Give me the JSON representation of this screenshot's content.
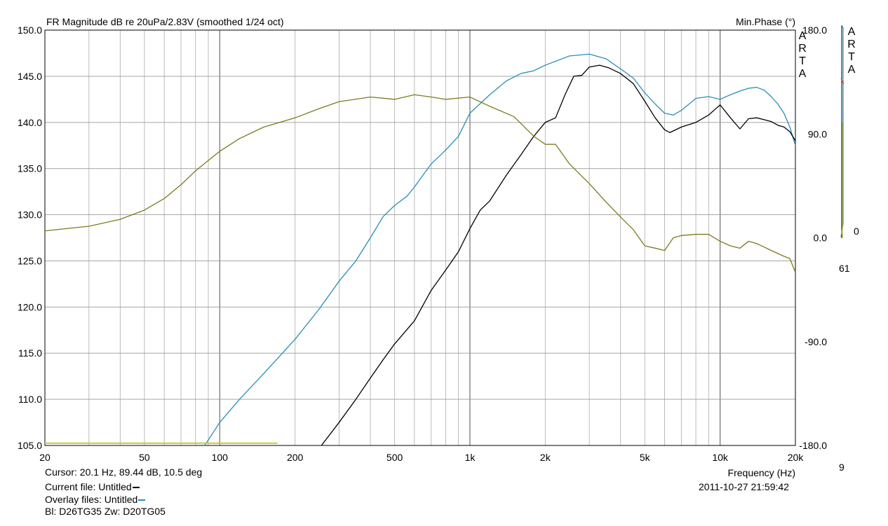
{
  "chart_data": {
    "type": "line",
    "title": "FR Magnitude dB re 20uPa/2.83V (smoothed 1/24 oct)",
    "right_axis_title": "Min.Phase (°)",
    "xlabel": "Frequency (Hz)",
    "x_scale": "log",
    "xlim": [
      20,
      20000
    ],
    "ylim": [
      105,
      150
    ],
    "y2lim": [
      -180,
      180
    ],
    "grid": true,
    "x_ticks": [
      20,
      50,
      100,
      200,
      500,
      1000,
      2000,
      5000,
      10000,
      20000
    ],
    "x_tick_labels": [
      "20",
      "50",
      "100",
      "200",
      "500",
      "1k",
      "2k",
      "5k",
      "10k",
      "20k"
    ],
    "y_ticks": [
      105,
      110,
      115,
      120,
      125,
      130,
      135,
      140,
      145,
      150
    ],
    "y_tick_labels": [
      "105.0",
      "110.0",
      "115.0",
      "120.0",
      "125.0",
      "130.0",
      "135.0",
      "140.0",
      "145.0",
      "150.0"
    ],
    "y2_ticks": [
      -180,
      -90,
      0,
      90,
      180
    ],
    "y2_tick_labels": [
      "-180.0",
      "-90.0",
      "0.0",
      "90.0",
      "180.0"
    ],
    "watermark": "ARTA",
    "series": [
      {
        "color": "#2a8fb5",
        "axis": "left",
        "points": [
          [
            87,
            105
          ],
          [
            90,
            105.6
          ],
          [
            100,
            107.5
          ],
          [
            120,
            110.0
          ],
          [
            150,
            112.8
          ],
          [
            200,
            116.5
          ],
          [
            250,
            119.8
          ],
          [
            300,
            122.8
          ],
          [
            350,
            125.0
          ],
          [
            400,
            127.5
          ],
          [
            450,
            129.8
          ],
          [
            500,
            131.0
          ],
          [
            560,
            132.0
          ],
          [
            600,
            133.0
          ],
          [
            700,
            135.5
          ],
          [
            800,
            137.0
          ],
          [
            900,
            138.5
          ],
          [
            1000,
            141.0
          ],
          [
            1200,
            143.0
          ],
          [
            1400,
            144.5
          ],
          [
            1600,
            145.3
          ],
          [
            1800,
            145.6
          ],
          [
            2000,
            146.2
          ],
          [
            2500,
            147.2
          ],
          [
            3000,
            147.4
          ],
          [
            3500,
            146.9
          ],
          [
            4000,
            145.8
          ],
          [
            4500,
            144.8
          ],
          [
            5000,
            143.2
          ],
          [
            5500,
            142.0
          ],
          [
            6000,
            141.0
          ],
          [
            6500,
            140.8
          ],
          [
            7000,
            141.3
          ],
          [
            8000,
            142.6
          ],
          [
            9000,
            142.8
          ],
          [
            10000,
            142.5
          ],
          [
            11000,
            143.0
          ],
          [
            12000,
            143.4
          ],
          [
            13000,
            143.7
          ],
          [
            14000,
            143.8
          ],
          [
            15000,
            143.5
          ],
          [
            16000,
            142.8
          ],
          [
            17000,
            142.0
          ],
          [
            18000,
            141.0
          ],
          [
            19000,
            139.5
          ],
          [
            20000,
            137.5
          ]
        ]
      },
      {
        "color": "#000000",
        "axis": "left",
        "points": [
          [
            255,
            105
          ],
          [
            300,
            107.5
          ],
          [
            350,
            110.0
          ],
          [
            400,
            112.3
          ],
          [
            450,
            114.3
          ],
          [
            500,
            116.0
          ],
          [
            600,
            118.5
          ],
          [
            700,
            121.8
          ],
          [
            800,
            124.0
          ],
          [
            900,
            126.0
          ],
          [
            1000,
            128.5
          ],
          [
            1100,
            130.5
          ],
          [
            1200,
            131.5
          ],
          [
            1400,
            134.3
          ],
          [
            1600,
            136.5
          ],
          [
            1800,
            138.5
          ],
          [
            2000,
            140.0
          ],
          [
            2200,
            140.5
          ],
          [
            2400,
            143.0
          ],
          [
            2600,
            145.0
          ],
          [
            2800,
            145.1
          ],
          [
            3000,
            146.0
          ],
          [
            3300,
            146.2
          ],
          [
            3600,
            145.9
          ],
          [
            4000,
            145.3
          ],
          [
            4500,
            144.2
          ],
          [
            5000,
            142.3
          ],
          [
            5500,
            140.5
          ],
          [
            6000,
            139.2
          ],
          [
            6300,
            138.9
          ],
          [
            7000,
            139.5
          ],
          [
            8000,
            140.0
          ],
          [
            9000,
            140.8
          ],
          [
            10000,
            141.9
          ],
          [
            11000,
            140.5
          ],
          [
            12000,
            139.3
          ],
          [
            13000,
            140.4
          ],
          [
            14000,
            140.5
          ],
          [
            15000,
            140.3
          ],
          [
            16000,
            140.1
          ],
          [
            17000,
            139.7
          ],
          [
            18000,
            139.5
          ],
          [
            19000,
            139.0
          ],
          [
            20000,
            138.0
          ]
        ]
      },
      {
        "color": "#7c7a1e",
        "axis": "right",
        "points": [
          [
            20,
            6
          ],
          [
            30,
            10
          ],
          [
            40,
            16
          ],
          [
            50,
            24
          ],
          [
            60,
            34
          ],
          [
            70,
            46
          ],
          [
            80,
            58
          ],
          [
            90,
            67
          ],
          [
            100,
            75
          ],
          [
            120,
            86
          ],
          [
            150,
            96
          ],
          [
            200,
            104
          ],
          [
            250,
            112
          ],
          [
            300,
            118
          ],
          [
            400,
            122
          ],
          [
            500,
            120
          ],
          [
            600,
            124
          ],
          [
            700,
            122
          ],
          [
            800,
            120
          ],
          [
            1000,
            122
          ],
          [
            1200,
            114
          ],
          [
            1500,
            105
          ],
          [
            1800,
            88
          ],
          [
            2000,
            81
          ],
          [
            2200,
            81
          ],
          [
            2500,
            64
          ],
          [
            3000,
            47
          ],
          [
            3500,
            31
          ],
          [
            4000,
            18
          ],
          [
            4500,
            7
          ],
          [
            5000,
            -7
          ],
          [
            5500,
            -9
          ],
          [
            6000,
            -11
          ],
          [
            6500,
            0
          ],
          [
            7000,
            2
          ],
          [
            8000,
            3
          ],
          [
            9000,
            3
          ],
          [
            10000,
            -3
          ],
          [
            11000,
            -7
          ],
          [
            12000,
            -9
          ],
          [
            13000,
            -3
          ],
          [
            14000,
            -5
          ],
          [
            15000,
            -8
          ],
          [
            16000,
            -11
          ],
          [
            18000,
            -16
          ],
          [
            19000,
            -18
          ],
          [
            20000,
            -30
          ]
        ]
      },
      {
        "color": "#c8c83a",
        "axis": "right",
        "points": [
          [
            20,
            -178
          ],
          [
            170,
            -178
          ]
        ]
      }
    ]
  },
  "footer": {
    "cursor": "Cursor: 20.1 Hz, 89.44 dB, 10.5 deg",
    "current_file": "Current file: Untitled",
    "overlay_files": "Overlay files: Untitled",
    "driver_info": "Bl: D26TG35 Zw: D20TG05",
    "timestamp": "2011-10-27  21:59:42"
  },
  "edge": {
    "zero": "0",
    "fragment_61": "61",
    "fragment_9": "9"
  }
}
